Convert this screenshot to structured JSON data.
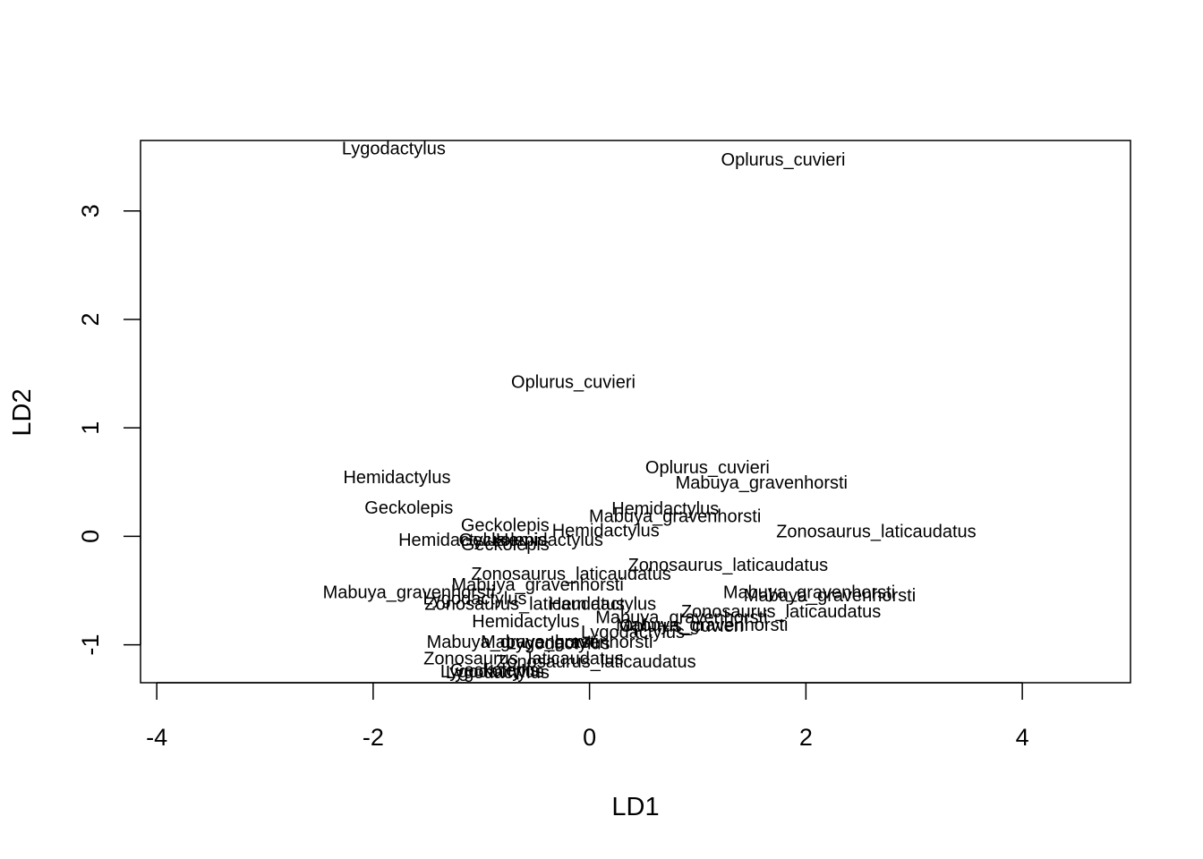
{
  "chart_data": {
    "type": "scatter",
    "title": "",
    "xlabel": "LD1",
    "ylabel": "LD2",
    "xlim": [
      -4.15,
      5.0
    ],
    "ylim": [
      -1.35,
      3.65
    ],
    "xticks": [
      -4,
      -2,
      0,
      2,
      4
    ],
    "yticks": [
      -1,
      0,
      1,
      2,
      3
    ],
    "xtick_labels": [
      "-4",
      "-2",
      "0",
      "2",
      "4"
    ],
    "ytick_labels": [
      "-1",
      "0",
      "1",
      "2",
      "3"
    ],
    "grid": false,
    "legend": "none",
    "points": [
      {
        "x": -1.81,
        "y": 3.57,
        "label": "Lygodactylus"
      },
      {
        "x": 1.79,
        "y": 3.47,
        "label": "Oplurus_cuvieri"
      },
      {
        "x": -0.15,
        "y": 1.42,
        "label": "Oplurus_cuvieri"
      },
      {
        "x": -1.78,
        "y": 0.54,
        "label": "Hemidactylus"
      },
      {
        "x": -1.67,
        "y": 0.26,
        "label": "Geckolepis"
      },
      {
        "x": 1.09,
        "y": 0.63,
        "label": "Oplurus_cuvieri"
      },
      {
        "x": 1.59,
        "y": 0.49,
        "label": "Mabuya_gravenhorsti"
      },
      {
        "x": 0.7,
        "y": 0.25,
        "label": "Hemidactylus"
      },
      {
        "x": 0.79,
        "y": 0.18,
        "label": "Mabuya_gravenhorsti"
      },
      {
        "x": 2.65,
        "y": 0.04,
        "label": "Zonosaurus_laticaudatus"
      },
      {
        "x": -0.78,
        "y": 0.1,
        "label": "Geckolepis"
      },
      {
        "x": 0.15,
        "y": 0.05,
        "label": "Hemidactylus"
      },
      {
        "x": -1.27,
        "y": -0.04,
        "label": "Hemidactylus"
      },
      {
        "x": -0.8,
        "y": -0.04,
        "label": "Geckolepis"
      },
      {
        "x": -0.37,
        "y": -0.04,
        "label": "Hemidactylus"
      },
      {
        "x": -0.78,
        "y": -0.08,
        "label": "Geckolepis"
      },
      {
        "x": 1.28,
        "y": -0.27,
        "label": "Zonosaurus_laticaudatus"
      },
      {
        "x": -0.17,
        "y": -0.35,
        "label": "Zonosaurus_laticaudatus"
      },
      {
        "x": -0.48,
        "y": -0.45,
        "label": "Mabuya_gravenhorsti"
      },
      {
        "x": -1.67,
        "y": -0.52,
        "label": "Mabuya_gravenhorsti"
      },
      {
        "x": -1.06,
        "y": -0.58,
        "label": "Lygodactylus"
      },
      {
        "x": -0.6,
        "y": -0.63,
        "label": "Zonosaurus_laticaudatus"
      },
      {
        "x": 0.12,
        "y": -0.63,
        "label": "Hemidactylus"
      },
      {
        "x": 2.03,
        "y": -0.52,
        "label": "Mabuya_gravenhorsti"
      },
      {
        "x": 2.22,
        "y": -0.55,
        "label": "Mabuya_gravenhorsti"
      },
      {
        "x": 1.77,
        "y": -0.7,
        "label": "Zonosaurus_laticaudatus"
      },
      {
        "x": -0.59,
        "y": -0.79,
        "label": "Hemidactylus"
      },
      {
        "x": 0.85,
        "y": -0.75,
        "label": "Mabuya_gravenhorsti"
      },
      {
        "x": 1.04,
        "y": -0.82,
        "label": "Mabuya_gravenhorsti"
      },
      {
        "x": 0.85,
        "y": -0.83,
        "label": "Oplurus_cuvieri"
      },
      {
        "x": 0.4,
        "y": -0.89,
        "label": "Lygodactylus"
      },
      {
        "x": -0.71,
        "y": -0.98,
        "label": "Mabuya_gravenhorsti"
      },
      {
        "x": -0.21,
        "y": -0.98,
        "label": "Mabuya_gravenhorsti"
      },
      {
        "x": -0.29,
        "y": -0.99,
        "label": "Lygodactylus"
      },
      {
        "x": -0.61,
        "y": -1.13,
        "label": "Zonosaurus_laticaudatus"
      },
      {
        "x": 0.06,
        "y": -1.16,
        "label": "Zonosaurus_laticaudatus"
      },
      {
        "x": -0.88,
        "y": -1.24,
        "label": "Geckolepis"
      },
      {
        "x": -0.9,
        "y": -1.25,
        "label": "Lygodactylus"
      },
      {
        "x": -0.85,
        "y": -1.26,
        "label": "Lygodactylus"
      }
    ]
  }
}
